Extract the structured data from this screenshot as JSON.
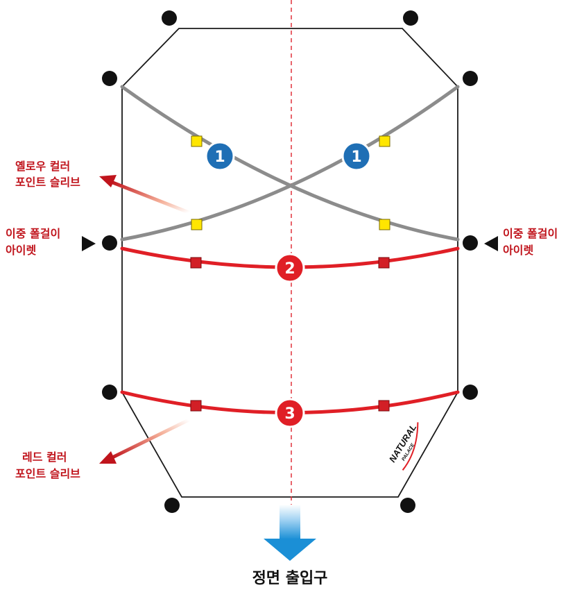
{
  "labels": {
    "yellow_clip": [
      "옐로우 컬러",
      "포인트 슬리브"
    ],
    "double_pole_left": [
      "이중 폴걸이",
      "아이렛"
    ],
    "double_pole_right": [
      "이중 폴걸이",
      "아이렛"
    ],
    "red_clip": [
      "레드 컬러",
      "포인트 슬리브"
    ],
    "front_entrance": "정면 출입구"
  },
  "pole_numbers": {
    "cross_left": "1",
    "cross_right": "1",
    "middle": "2",
    "lower": "3"
  },
  "logo": {
    "line1": "NATURAL",
    "line2": "PALACE"
  },
  "colors": {
    "outline": "#1a1a1a",
    "gray_pole": "#8c8c8c",
    "red_pole": "#e01f26",
    "yellow_clip": "#ffe600",
    "red_clip": "#d21f26",
    "blue_badge": "#1f6fb5",
    "label_red": "#c0141c",
    "center_line": "#e0303a",
    "arrow_blue": "#1b8fd6"
  }
}
